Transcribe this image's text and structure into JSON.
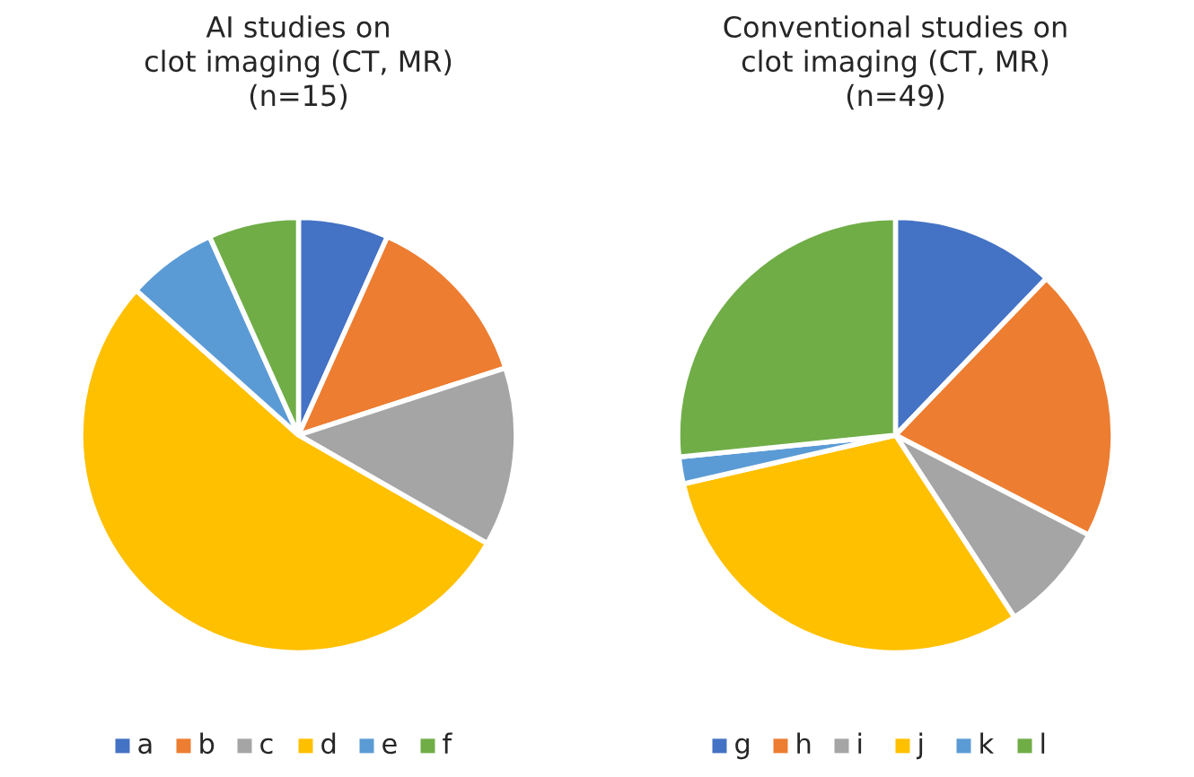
{
  "chart_data": [
    {
      "type": "pie",
      "title": "AI studies on\nclot imaging (CT, MR)\n(n=15)",
      "categories": [
        "a",
        "b",
        "c",
        "d",
        "e",
        "f"
      ],
      "values": [
        6.7,
        13.3,
        13.3,
        53.3,
        6.7,
        6.7
      ],
      "colors": [
        "#4472c4",
        "#ed7d31",
        "#a5a5a5",
        "#ffc000",
        "#5b9bd5",
        "#70ad47"
      ],
      "legend": "bottom"
    },
    {
      "type": "pie",
      "title": "Conventional studies on\nclot imaging (CT, MR)\n(n=49)",
      "categories": [
        "g",
        "h",
        "i",
        "j",
        "k",
        "l"
      ],
      "values": [
        12.2,
        20.4,
        8.2,
        30.6,
        2.0,
        26.6
      ],
      "colors": [
        "#4472c4",
        "#ed7d31",
        "#a5a5a5",
        "#ffc000",
        "#5b9bd5",
        "#70ad47"
      ],
      "legend": "bottom"
    }
  ]
}
